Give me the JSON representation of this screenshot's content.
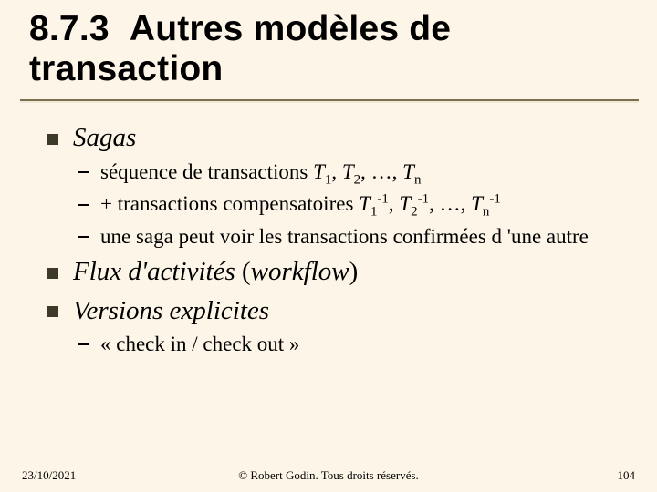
{
  "colors": {
    "background": "#fdf6e8",
    "title_text": "#000000",
    "rule_dark": "#7a6f4f",
    "rule_light": "#efe9d6",
    "bullet_square": "#3d3a29",
    "bullet_dash": "#000000",
    "body_text": "#000000"
  },
  "typography": {
    "title_font": "Arial",
    "title_weight": "900",
    "title_size_pt": 29,
    "lvl1_font": "Times New Roman",
    "lvl1_style": "italic",
    "lvl1_size_pt": 22,
    "lvl2_font": "Times New Roman",
    "lvl2_size_pt": 17,
    "footer_size_pt": 10
  },
  "title_line1": "8.7.3",
  "title_line2": "Autres modèles de",
  "title_line3": "transaction",
  "bullets": {
    "sagas_label": "Sagas",
    "sagas_sub1_pre": "séquence de transactions ",
    "sagas_sub1_T1": "T",
    "sagas_sub1_s1": "1",
    "sagas_sub1_c1": ", ",
    "sagas_sub1_T2": "T",
    "sagas_sub1_s2": "2",
    "sagas_sub1_c2": ", …, ",
    "sagas_sub1_Tn": "T",
    "sagas_sub1_sn": "n",
    "sagas_sub2_pre": "+ transactions compensatoires ",
    "sagas_sub2_T1": "T",
    "sagas_sub2_s1": "1",
    "sagas_sub2_e1": "-1",
    "sagas_sub2_c1": ", ",
    "sagas_sub2_T2": "T",
    "sagas_sub2_s2": "2",
    "sagas_sub2_e2": "-1",
    "sagas_sub2_c2": ", …, ",
    "sagas_sub2_Tn": "T",
    "sagas_sub2_sn": "n",
    "sagas_sub2_en": "-1",
    "sagas_sub3": "une saga peut voir les transactions confirmées d 'une autre",
    "flux_pre": "Flux d'activités ",
    "flux_paren_open": "(",
    "flux_workflow": "workflow",
    "flux_paren_close": ")",
    "versions_label": "Versions explicites",
    "versions_sub1": "« check in / check out »"
  },
  "footer": {
    "date": "23/10/2021",
    "copyright": "© Robert Godin. Tous droits réservés.",
    "page": "104"
  }
}
